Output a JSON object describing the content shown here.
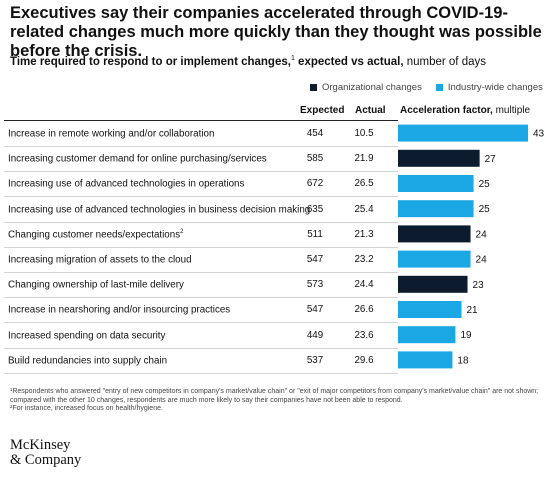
{
  "title": "Executives say their companies accelerated through COVID-19-related changes much more quickly than they thought was possible before the crisis.",
  "subtitle": {
    "main": "Time required to respond to or implement changes,",
    "sup": "1",
    "mid": " expected vs actual,",
    "unit": " number of days"
  },
  "legend": {
    "organizational": "Organizational changes",
    "industry": "Industry-wide changes"
  },
  "columns": {
    "expected": "Expected",
    "actual": "Actual",
    "factor": "Acceleration factor,",
    "factor_unit": " multiple"
  },
  "colors": {
    "organizational": "#0d1b2e",
    "industry": "#1ba6e4"
  },
  "chart_data": {
    "type": "bar",
    "orientation": "horizontal",
    "categories": [
      "Increase in remote working and/or collaboration",
      "Increasing customer demand for online purchasing/services",
      "Increasing use of advanced technologies in operations",
      "Increasing use of advanced technologies in business decision making",
      "Changing customer needs/expectations",
      "Increasing migration of assets to the cloud",
      "Changing ownership of last-mile delivery",
      "Increase in nearshoring and/or insourcing practices",
      "Increased spending on data security",
      "Build redundancies into supply chain"
    ],
    "category_sups": [
      "",
      "",
      "",
      "",
      "2",
      "",
      "",
      "",
      "",
      ""
    ],
    "expected": [
      454,
      585,
      672,
      635,
      511,
      547,
      573,
      547,
      449,
      537
    ],
    "actual": [
      "10.5",
      "21.9",
      "26.5",
      "25.4",
      "21.3",
      "23.2",
      "24.4",
      "26.6",
      "23.6",
      "29.6"
    ],
    "values": [
      43,
      27,
      25,
      25,
      24,
      24,
      23,
      21,
      19,
      18
    ],
    "change_type": [
      "industry",
      "organizational",
      "industry",
      "industry",
      "organizational",
      "industry",
      "organizational",
      "industry",
      "industry",
      "industry"
    ],
    "xlim": [
      0,
      43
    ]
  },
  "footnotes": [
    "¹Respondents who answered \"entry of new competitors in company's market/value chain\" or \"exit of major competitors from company's market/value chain\" are not shown; compared with the other 10 changes, respondents are much more likely to say their companies have not been able to respond.",
    "²For instance, increased focus on health/hygiene."
  ],
  "logo": {
    "line1": "McKinsey",
    "line2": "& Company"
  }
}
